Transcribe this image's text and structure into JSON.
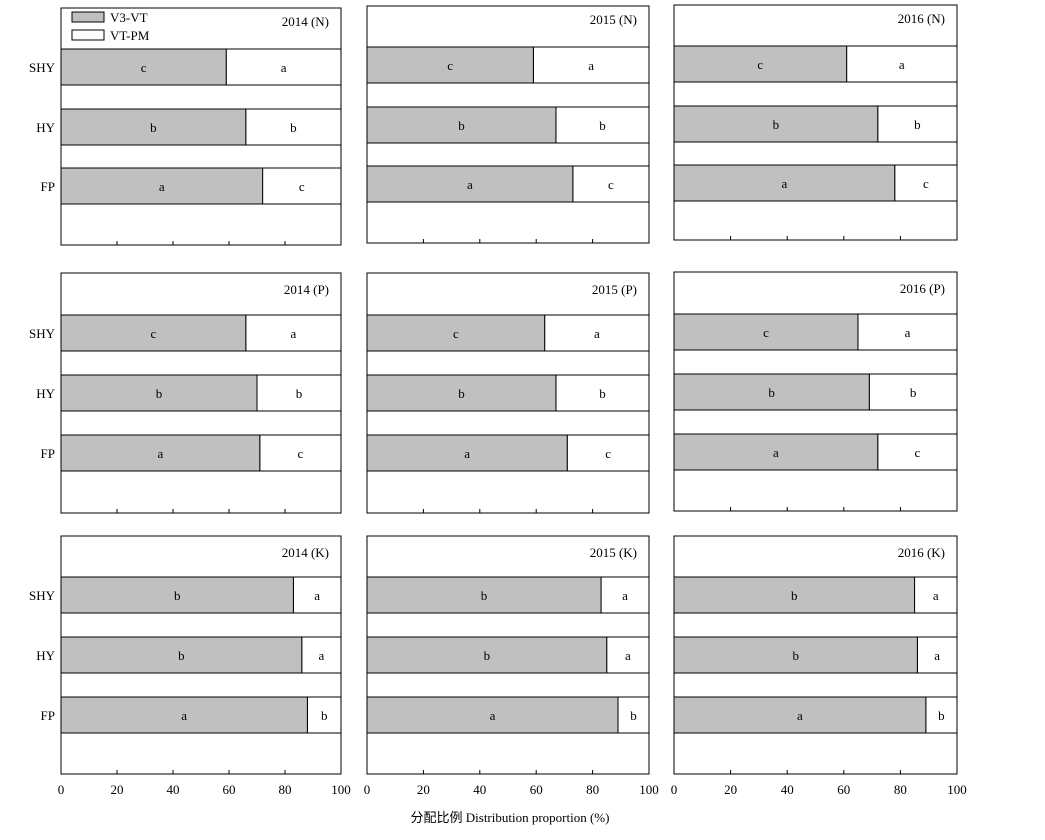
{
  "legend": {
    "items": [
      {
        "label": "V3-VT",
        "color": "#c0c0c0"
      },
      {
        "label": "VT-PM",
        "color": "#ffffff"
      }
    ]
  },
  "xlabel": "分配比例 Distribution proportion (%)",
  "xticks": [
    "0",
    "20",
    "40",
    "60",
    "80",
    "100"
  ],
  "xlim": [
    0,
    100
  ],
  "categories": [
    "SHY",
    "HY",
    "FP"
  ],
  "chart_data": [
    {
      "type": "bar",
      "orientation": "horizontal",
      "stacked": true,
      "title": "2014 (N)",
      "categories": [
        "SHY",
        "HY",
        "FP"
      ],
      "series": [
        {
          "name": "V3-VT",
          "values": [
            59,
            66,
            72
          ],
          "letters": [
            "c",
            "b",
            "a"
          ]
        },
        {
          "name": "VT-PM",
          "values": [
            41,
            34,
            28
          ],
          "letters": [
            "a",
            "b",
            "c"
          ]
        }
      ]
    },
    {
      "type": "bar",
      "orientation": "horizontal",
      "stacked": true,
      "title": "2015 (N)",
      "categories": [
        "SHY",
        "HY",
        "FP"
      ],
      "series": [
        {
          "name": "V3-VT",
          "values": [
            59,
            67,
            73
          ],
          "letters": [
            "c",
            "b",
            "a"
          ]
        },
        {
          "name": "VT-PM",
          "values": [
            41,
            33,
            27
          ],
          "letters": [
            "a",
            "b",
            "c"
          ]
        }
      ]
    },
    {
      "type": "bar",
      "orientation": "horizontal",
      "stacked": true,
      "title": "2016 (N)",
      "categories": [
        "SHY",
        "HY",
        "FP"
      ],
      "series": [
        {
          "name": "V3-VT",
          "values": [
            61,
            72,
            78
          ],
          "letters": [
            "c",
            "b",
            "a"
          ]
        },
        {
          "name": "VT-PM",
          "values": [
            39,
            28,
            22
          ],
          "letters": [
            "a",
            "b",
            "c"
          ]
        }
      ]
    },
    {
      "type": "bar",
      "orientation": "horizontal",
      "stacked": true,
      "title": "2014 (P)",
      "categories": [
        "SHY",
        "HY",
        "FP"
      ],
      "series": [
        {
          "name": "V3-VT",
          "values": [
            66,
            70,
            71
          ],
          "letters": [
            "c",
            "b",
            "a"
          ]
        },
        {
          "name": "VT-PM",
          "values": [
            34,
            30,
            29
          ],
          "letters": [
            "a",
            "b",
            "c"
          ]
        }
      ]
    },
    {
      "type": "bar",
      "orientation": "horizontal",
      "stacked": true,
      "title": "2015 (P)",
      "categories": [
        "SHY",
        "HY",
        "FP"
      ],
      "series": [
        {
          "name": "V3-VT",
          "values": [
            63,
            67,
            71
          ],
          "letters": [
            "c",
            "b",
            "a"
          ]
        },
        {
          "name": "VT-PM",
          "values": [
            37,
            33,
            29
          ],
          "letters": [
            "a",
            "b",
            "c"
          ]
        }
      ]
    },
    {
      "type": "bar",
      "orientation": "horizontal",
      "stacked": true,
      "title": "2016 (P)",
      "categories": [
        "SHY",
        "HY",
        "FP"
      ],
      "series": [
        {
          "name": "V3-VT",
          "values": [
            65,
            69,
            72
          ],
          "letters": [
            "c",
            "b",
            "a"
          ]
        },
        {
          "name": "VT-PM",
          "values": [
            35,
            31,
            28
          ],
          "letters": [
            "a",
            "b",
            "c"
          ]
        }
      ]
    },
    {
      "type": "bar",
      "orientation": "horizontal",
      "stacked": true,
      "title": "2014 (K)",
      "categories": [
        "SHY",
        "HY",
        "FP"
      ],
      "series": [
        {
          "name": "V3-VT",
          "values": [
            83,
            86,
            88
          ],
          "letters": [
            "b",
            "b",
            "a"
          ]
        },
        {
          "name": "VT-PM",
          "values": [
            17,
            14,
            12
          ],
          "letters": [
            "a",
            "a",
            "b"
          ]
        }
      ]
    },
    {
      "type": "bar",
      "orientation": "horizontal",
      "stacked": true,
      "title": "2015 (K)",
      "categories": [
        "SHY",
        "HY",
        "FP"
      ],
      "series": [
        {
          "name": "V3-VT",
          "values": [
            83,
            85,
            89
          ],
          "letters": [
            "b",
            "b",
            "a"
          ]
        },
        {
          "name": "VT-PM",
          "values": [
            17,
            15,
            11
          ],
          "letters": [
            "a",
            "a",
            "b"
          ]
        }
      ]
    },
    {
      "type": "bar",
      "orientation": "horizontal",
      "stacked": true,
      "title": "2016 (K)",
      "categories": [
        "SHY",
        "HY",
        "FP"
      ],
      "series": [
        {
          "name": "V3-VT",
          "values": [
            85,
            86,
            89
          ],
          "letters": [
            "b",
            "b",
            "a"
          ]
        },
        {
          "name": "VT-PM",
          "values": [
            15,
            14,
            11
          ],
          "letters": [
            "a",
            "a",
            "b"
          ]
        }
      ]
    }
  ]
}
